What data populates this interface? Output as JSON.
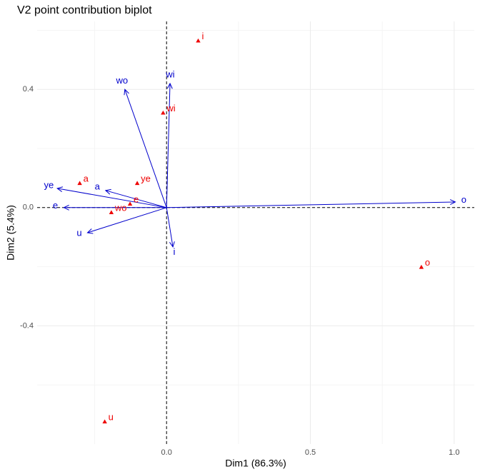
{
  "chart_data": {
    "type": "biplot",
    "title": "V2 point contribution biplot",
    "x_label": "Dim1 (86.3%)",
    "y_label": "Dim2 (5.4%)",
    "xlim": [
      -0.45,
      1.07
    ],
    "ylim": [
      -0.8,
      0.63
    ],
    "xticks": [
      {
        "value": 0,
        "label": "0.0"
      },
      0.5,
      {
        "value": 1,
        "label": "1.0"
      }
    ],
    "yticks": [
      -0.4,
      {
        "value": 0,
        "label": "0.0"
      },
      0.4
    ],
    "minor_xticks": [
      -0.25,
      0.25,
      0.75
    ],
    "minor_yticks": [
      -0.6,
      -0.2,
      0.2,
      0.6
    ],
    "grid": true,
    "reference_lines": {
      "x": 0,
      "y": 0
    },
    "points": {
      "color": "#ee0000",
      "labels": [
        "i",
        "wi",
        "ye",
        "a",
        "e",
        "wo",
        "o",
        "u"
      ],
      "x": [
        0.11,
        -0.012,
        -0.102,
        -0.302,
        -0.127,
        -0.192,
        0.886,
        -0.215
      ],
      "y": [
        0.564,
        0.32,
        0.082,
        0.082,
        0.012,
        -0.017,
        -0.202,
        -0.725
      ]
    },
    "arrows": {
      "color": "#0000cc",
      "labels": [
        "o",
        "wi",
        "wo",
        "ye",
        "a",
        "e",
        "u",
        "i"
      ],
      "x": [
        1.004,
        0.012,
        -0.145,
        -0.38,
        -0.212,
        -0.357,
        -0.275,
        0.022
      ],
      "y": [
        0.019,
        0.42,
        0.4,
        0.065,
        0.058,
        0.0,
        -0.085,
        -0.133
      ]
    }
  }
}
